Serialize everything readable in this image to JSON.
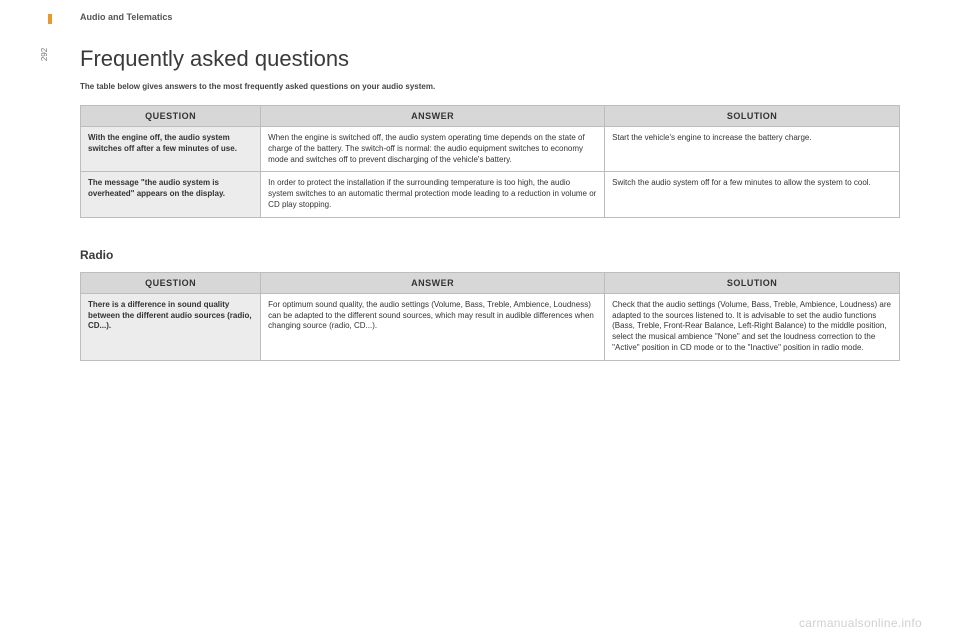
{
  "page": {
    "section_label": "Audio and Telematics",
    "page_number": "292",
    "title": "Frequently asked questions",
    "intro": "The table below gives answers to the most frequently asked questions on your audio system.",
    "watermark": "carmanualsonline.info"
  },
  "table1": {
    "headers": {
      "q": "QUESTION",
      "a": "ANSWER",
      "s": "SOLUTION"
    },
    "rows": [
      {
        "q": "With the engine off, the audio system switches off after a few minutes of use.",
        "a": "When the engine is switched off, the audio system operating time depends on the state of charge of the battery.\nThe switch-off is normal: the audio equipment switches to economy mode and switches off to prevent discharging of the vehicle's battery.",
        "s": "Start the vehicle's engine to increase the battery charge."
      },
      {
        "q": "The message \"the audio system is overheated\" appears on the display.",
        "a": "In order to protect the installation if the surrounding temperature is too high, the audio system switches to an automatic thermal protection mode leading to a reduction in volume or CD play stopping.",
        "s": "Switch the audio system off for a few minutes to allow the system to cool."
      }
    ]
  },
  "radio": {
    "heading": "Radio",
    "headers": {
      "q": "QUESTION",
      "a": "ANSWER",
      "s": "SOLUTION"
    },
    "rows": [
      {
        "q": "There is a difference in sound quality between the different audio sources (radio, CD...).",
        "a": "For optimum sound quality, the audio settings (Volume, Bass, Treble, Ambience, Loudness) can be adapted to the different sound sources, which may result in audible differences when changing source (radio, CD...).",
        "s": "Check that the audio settings (Volume, Bass, Treble, Ambience, Loudness) are adapted to the sources listened to. It is advisable to set the audio functions (Bass, Treble, Front-Rear Balance, Left-Right Balance) to the middle position, select the musical ambience \"None\" and set the loudness correction to the \"Active\" position in CD mode or to the \"Inactive\" position in radio mode."
      }
    ]
  }
}
